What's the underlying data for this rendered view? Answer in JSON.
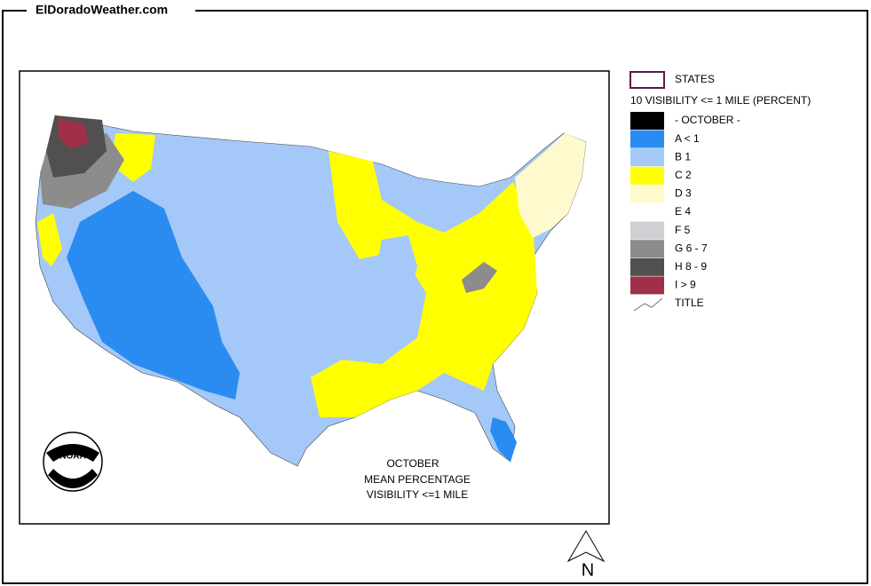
{
  "header": {
    "site": "ElDoradoWeather.com"
  },
  "map_title": {
    "lines": [
      "OCTOBER",
      "MEAN PERCENTAGE",
      "VISIBILITY <=1 MILE"
    ]
  },
  "logo": {
    "text": "NOAA"
  },
  "north_arrow": {
    "label": "N"
  },
  "legend": {
    "states": {
      "label": "STATES"
    },
    "heading": "10 VISIBILITY <= 1 MILE (PERCENT)",
    "items": [
      {
        "label": "- OCTOBER -",
        "color": "#000000"
      },
      {
        "label": "A < 1",
        "color": "#2a8cf0"
      },
      {
        "label": "B 1",
        "color": "#a4c8f8"
      },
      {
        "label": "C 2",
        "color": "#ffff00"
      },
      {
        "label": "D 3",
        "color": "#fffacd"
      },
      {
        "label": "E 4",
        "color": "#ffffff"
      },
      {
        "label": "F 5",
        "color": "#d0d0d4"
      },
      {
        "label": "G 6 - 7",
        "color": "#8c8c8c"
      },
      {
        "label": "H 8 - 9",
        "color": "#505050"
      },
      {
        "label": "I > 9",
        "color": "#a0304a"
      }
    ],
    "title_item": {
      "label": "TITLE"
    }
  }
}
